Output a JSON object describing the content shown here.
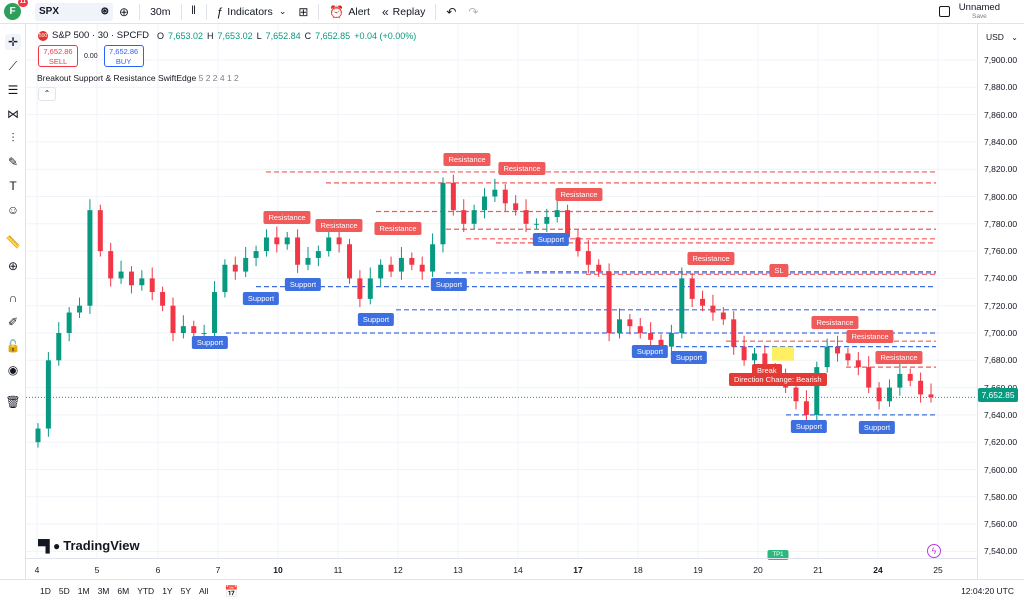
{
  "toolbar": {
    "avatar_letter": "F",
    "notification_count": "11",
    "symbol": "SPX",
    "interval": "30m",
    "indicators_label": "Indicators",
    "alert_label": "Alert",
    "replay_label": "Replay",
    "layout_name": "Unnamed",
    "layout_save": "Save"
  },
  "legend": {
    "badge": "500",
    "title": "S&P 500 · 30 · SPCFD",
    "o_label": "O",
    "o_val": "7,653.02",
    "h_label": "H",
    "h_val": "7,653.02",
    "l_label": "L",
    "l_val": "7,652.84",
    "c_label": "C",
    "c_val": "7,652.85",
    "change": "+0.04 (+0.00%)",
    "sell_price": "7,652.86",
    "sell_label": "SELL",
    "spread": "0.00",
    "buy_price": "7,652.86",
    "buy_label": "BUY",
    "indicator_name": "Breakout Support & Resistance SwiftEdge",
    "indicator_params": "5 2 2 4 1 2",
    "collapse_glyph": "⌃"
  },
  "price_axis": {
    "currency": "USD",
    "ticks": [
      "7,900.00",
      "7,880.00",
      "7,860.00",
      "7,840.00",
      "7,820.00",
      "7,800.00",
      "7,780.00",
      "7,760.00",
      "7,740.00",
      "7,720.00",
      "7,700.00",
      "7,680.00",
      "7,660.00",
      "7,640.00",
      "7,620.00",
      "7,600.00",
      "7,580.00",
      "7,560.00",
      "7,540.00"
    ],
    "last_price": "7,652.85"
  },
  "time_axis": {
    "ticks": [
      {
        "label": "4",
        "bold": false
      },
      {
        "label": "5",
        "bold": false
      },
      {
        "label": "6",
        "bold": false
      },
      {
        "label": "7",
        "bold": false
      },
      {
        "label": "10",
        "bold": true
      },
      {
        "label": "11",
        "bold": false
      },
      {
        "label": "12",
        "bold": false
      },
      {
        "label": "13",
        "bold": false
      },
      {
        "label": "14",
        "bold": false
      },
      {
        "label": "17",
        "bold": true
      },
      {
        "label": "18",
        "bold": false
      },
      {
        "label": "19",
        "bold": false
      },
      {
        "label": "20",
        "bold": false
      },
      {
        "label": "21",
        "bold": false
      },
      {
        "label": "24",
        "bold": true
      },
      {
        "label": "25",
        "bold": false
      }
    ]
  },
  "bottombar": {
    "ranges": [
      "1D",
      "5D",
      "1M",
      "3M",
      "6M",
      "YTD",
      "1Y",
      "5Y",
      "All"
    ],
    "clock": "12:04:20 UTC"
  },
  "watermark": "TradingView",
  "labels": {
    "resistance": "Resistance",
    "support": "Support",
    "sl": "SL",
    "direction": "Direction Change: Bearish",
    "breakout": "Break",
    "tp": "TP1"
  },
  "colors": {
    "up": "#089981",
    "down": "#f23645",
    "resistance": "#f05a5a",
    "support": "#3d6fe0",
    "accent": "#2962ff"
  },
  "chart_data": {
    "type": "candlestick",
    "title": "S&P 500 · 30 · SPCFD",
    "ylim": [
      7530,
      7910
    ],
    "close_series": [
      7630,
      7680,
      7700,
      7715,
      7720,
      7790,
      7760,
      7740,
      7745,
      7735,
      7740,
      7730,
      7720,
      7700,
      7705,
      7700,
      7700,
      7730,
      7750,
      7745,
      7755,
      7760,
      7770,
      7765,
      7770,
      7750,
      7755,
      7760,
      7770,
      7765,
      7740,
      7725,
      7740,
      7750,
      7745,
      7755,
      7750,
      7745,
      7765,
      7810,
      7790,
      7780,
      7790,
      7800,
      7805,
      7795,
      7790,
      7780,
      7780,
      7785,
      7790,
      7770,
      7760,
      7750,
      7745,
      7700,
      7710,
      7705,
      7700,
      7695,
      7690,
      7700,
      7740,
      7725,
      7720,
      7715,
      7710,
      7690,
      7680,
      7685,
      7670,
      7670,
      7660,
      7650,
      7640,
      7675,
      7690,
      7685,
      7680,
      7675,
      7660,
      7650,
      7660,
      7670,
      7665,
      7655,
      7653
    ],
    "resistance_levels": [
      7818,
      7810,
      7789,
      7776,
      7769,
      7766,
      7745,
      7743,
      7694,
      7675
    ],
    "support_levels": [
      7744,
      7734,
      7717,
      7700,
      7690,
      7640
    ],
    "last_price": 7652.85
  }
}
